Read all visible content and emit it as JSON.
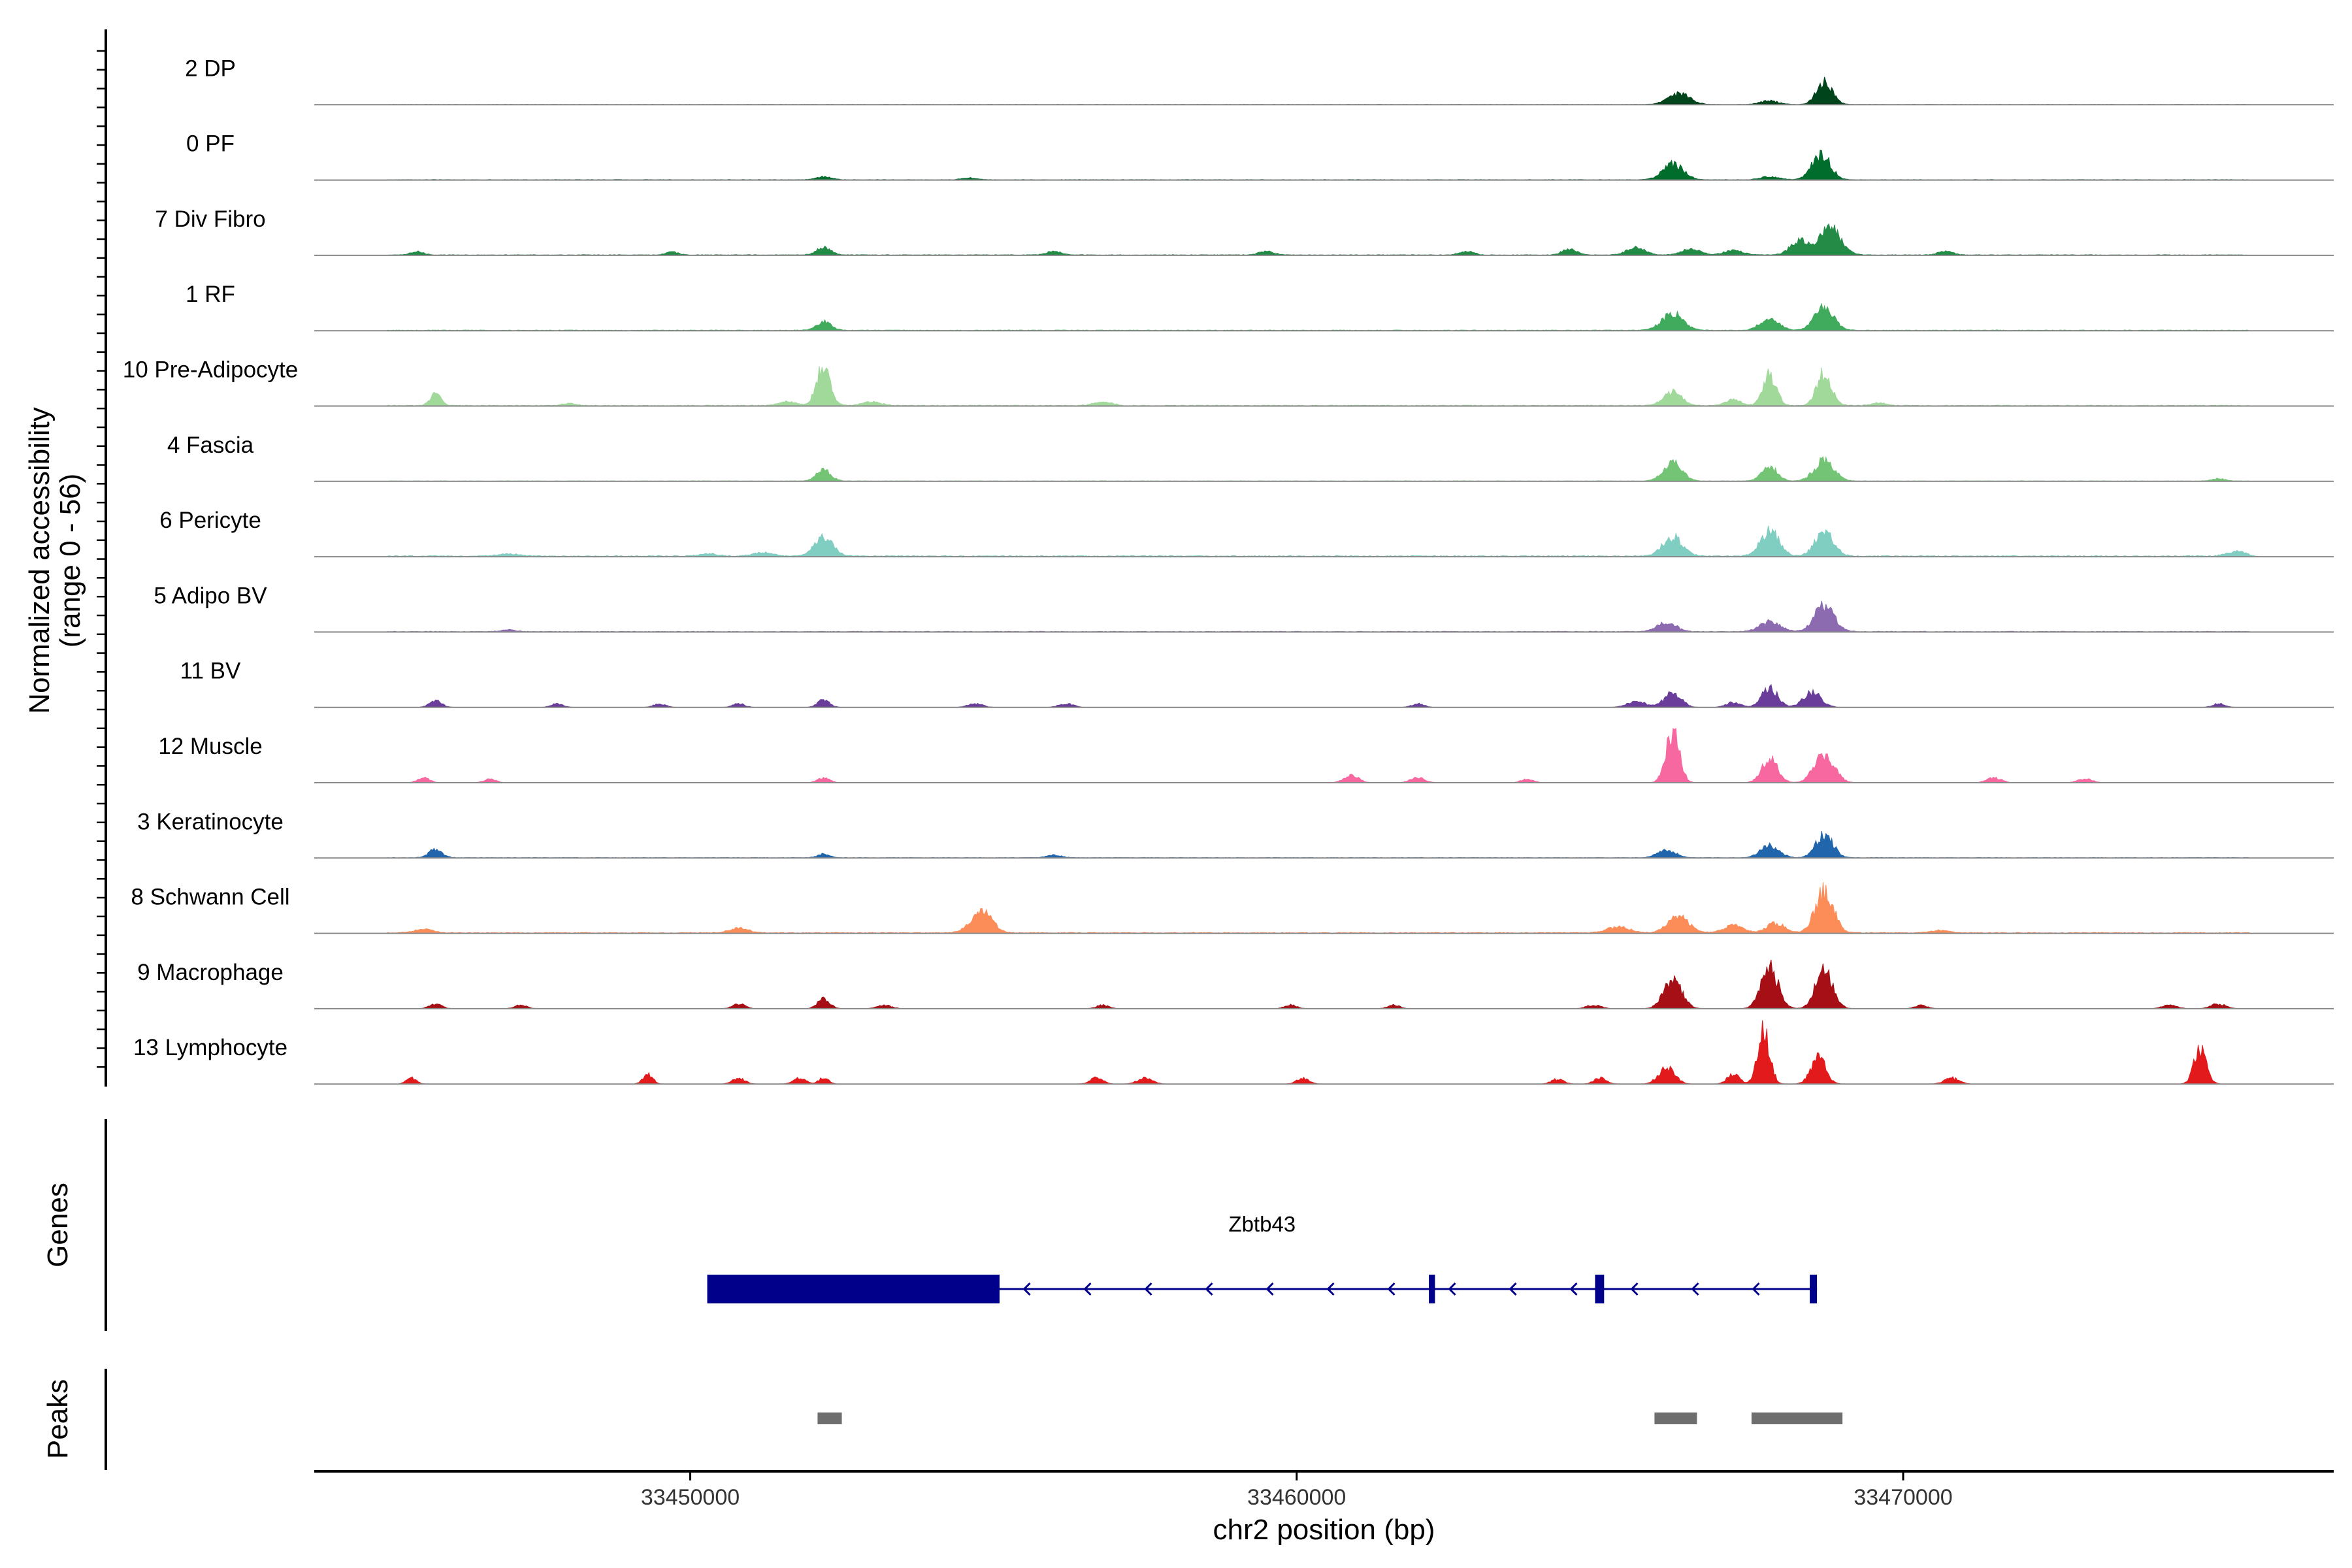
{
  "chart_data": {
    "type": "coverage",
    "title": "",
    "ylabel": "Normalized accessibility",
    "ylabel_range": "(range 0 - 56)",
    "xlabel": "chr2 position (bp)",
    "xlim": [
      33443800,
      33477100
    ],
    "ylim": [
      0,
      56
    ],
    "x_ticks": [
      33450000,
      33460000,
      33470000
    ],
    "x_tick_labels": [
      "33450000",
      "33460000",
      "33470000"
    ],
    "tracks": [
      {
        "name": "2 DP",
        "color": "#00441b",
        "base": 0.2,
        "peaks": [
          [
            33466300,
            9,
            180
          ],
          [
            33467800,
            3,
            150
          ],
          [
            33468700,
            19,
            130
          ]
        ]
      },
      {
        "name": "0 PF",
        "color": "#006d2c",
        "base": 0.3,
        "peaks": [
          [
            33452200,
            2.5,
            120
          ],
          [
            33454600,
            1.5,
            120
          ],
          [
            33466200,
            13,
            170
          ],
          [
            33467800,
            2.5,
            150
          ],
          [
            33468650,
            21,
            150
          ]
        ]
      },
      {
        "name": "7 Div Fibro",
        "color": "#238b45",
        "base": 0.4,
        "peaks": [
          [
            33445500,
            3,
            100
          ],
          [
            33449700,
            2.5,
            100
          ],
          [
            33452200,
            6,
            120
          ],
          [
            33456000,
            3,
            120
          ],
          [
            33459500,
            3,
            120
          ],
          [
            33462800,
            3,
            120
          ],
          [
            33464500,
            5,
            120
          ],
          [
            33465600,
            6,
            150
          ],
          [
            33466500,
            5,
            150
          ],
          [
            33467200,
            4,
            150
          ],
          [
            33468300,
            12,
            150
          ],
          [
            33468800,
            22,
            170
          ],
          [
            33470700,
            3,
            120
          ]
        ]
      },
      {
        "name": "1 RF",
        "color": "#41ab5d",
        "base": 0.4,
        "peaks": [
          [
            33452200,
            7,
            120
          ],
          [
            33466200,
            14,
            170
          ],
          [
            33467800,
            10,
            150
          ],
          [
            33468700,
            21,
            150
          ]
        ]
      },
      {
        "name": "10 Pre-Adipocyte",
        "color": "#a1d99b",
        "base": 0.5,
        "peaks": [
          [
            33445800,
            9,
            90
          ],
          [
            33448000,
            1.5,
            120
          ],
          [
            33451600,
            3,
            150
          ],
          [
            33452200,
            35,
            110
          ],
          [
            33453000,
            3,
            150
          ],
          [
            33456800,
            3,
            150
          ],
          [
            33466200,
            11,
            150
          ],
          [
            33467200,
            5,
            120
          ],
          [
            33467800,
            25,
            110
          ],
          [
            33468700,
            27,
            120
          ],
          [
            33469600,
            2,
            120
          ]
        ]
      },
      {
        "name": "4 Fascia",
        "color": "#74c476",
        "base": 0.3,
        "peaks": [
          [
            33452200,
            9,
            120
          ],
          [
            33466200,
            16,
            150
          ],
          [
            33467800,
            12,
            130
          ],
          [
            33468700,
            17,
            160
          ],
          [
            33475200,
            2,
            110
          ]
        ]
      },
      {
        "name": "6 Pericyte",
        "color": "#80cdc1",
        "base": 0.6,
        "peaks": [
          [
            33447000,
            2,
            150
          ],
          [
            33450300,
            2,
            150
          ],
          [
            33451200,
            3,
            150
          ],
          [
            33452200,
            15,
            150
          ],
          [
            33466200,
            16,
            160
          ],
          [
            33467800,
            21,
            150
          ],
          [
            33468700,
            20,
            150
          ],
          [
            33475500,
            4,
            150
          ]
        ]
      },
      {
        "name": "5 Adipo BV",
        "color": "#8c6bb1",
        "base": 0.4,
        "peaks": [
          [
            33447000,
            1.5,
            120
          ],
          [
            33466100,
            8,
            150
          ],
          [
            33467800,
            8,
            170
          ],
          [
            33468700,
            22,
            160
          ]
        ]
      },
      {
        "name": "11 BV",
        "color": "#6a3d9a",
        "base": 0,
        "peaks": [
          [
            33445800,
            6,
            100
          ],
          [
            33447800,
            3,
            100
          ],
          [
            33449500,
            3,
            100
          ],
          [
            33450800,
            3,
            100
          ],
          [
            33452200,
            6,
            100
          ],
          [
            33454700,
            3,
            120
          ],
          [
            33456200,
            3,
            120
          ],
          [
            33462000,
            3,
            100
          ],
          [
            33465600,
            5,
            150
          ],
          [
            33466200,
            12,
            140
          ],
          [
            33467200,
            4,
            120
          ],
          [
            33467800,
            16,
            130
          ],
          [
            33468500,
            12,
            150
          ],
          [
            33475200,
            3,
            100
          ]
        ]
      },
      {
        "name": "12 Muscle",
        "color": "#f768a1",
        "base": 0,
        "peaks": [
          [
            33445600,
            4,
            100
          ],
          [
            33446700,
            3,
            100
          ],
          [
            33452200,
            4,
            100
          ],
          [
            33460900,
            6,
            120
          ],
          [
            33462000,
            4,
            120
          ],
          [
            33463800,
            3,
            100
          ],
          [
            33466200,
            42,
            110
          ],
          [
            33467800,
            20,
            130
          ],
          [
            33468700,
            24,
            160
          ],
          [
            33471500,
            4,
            120
          ],
          [
            33473000,
            3,
            120
          ]
        ]
      },
      {
        "name": "3 Keratinocyte",
        "color": "#2166ac",
        "base": 0.3,
        "peaks": [
          [
            33445800,
            7,
            110
          ],
          [
            33452200,
            3,
            100
          ],
          [
            33456000,
            2,
            120
          ],
          [
            33466100,
            6,
            150
          ],
          [
            33467800,
            10,
            150
          ],
          [
            33468700,
            19,
            140
          ]
        ]
      },
      {
        "name": "8 Schwann Cell",
        "color": "#fc8d59",
        "base": 0.5,
        "peaks": [
          [
            33445600,
            3,
            150
          ],
          [
            33450800,
            4,
            150
          ],
          [
            33454800,
            18,
            170
          ],
          [
            33465300,
            5,
            180
          ],
          [
            33466300,
            14,
            170
          ],
          [
            33467200,
            6,
            160
          ],
          [
            33467900,
            8,
            150
          ],
          [
            33468700,
            34,
            150
          ],
          [
            33470600,
            2,
            150
          ]
        ]
      },
      {
        "name": "9 Macrophage",
        "color": "#a50f15",
        "base": 0,
        "peaks": [
          [
            33445800,
            4,
            100
          ],
          [
            33447200,
            3,
            100
          ],
          [
            33450800,
            4,
            100
          ],
          [
            33452200,
            8,
            100
          ],
          [
            33453200,
            3,
            120
          ],
          [
            33456800,
            3,
            100
          ],
          [
            33459900,
            3,
            100
          ],
          [
            33461600,
            3,
            100
          ],
          [
            33464900,
            3,
            120
          ],
          [
            33466200,
            23,
            150
          ],
          [
            33467800,
            33,
            140
          ],
          [
            33468700,
            33,
            140
          ],
          [
            33470300,
            3,
            100
          ],
          [
            33474400,
            3,
            120
          ],
          [
            33475200,
            4,
            120
          ]
        ]
      },
      {
        "name": "13 Lymphocyte",
        "color": "#e31a1c",
        "base": 0,
        "peaks": [
          [
            33445400,
            5,
            80
          ],
          [
            33449300,
            8,
            80
          ],
          [
            33450800,
            5,
            100
          ],
          [
            33451800,
            5,
            100
          ],
          [
            33452200,
            5,
            80
          ],
          [
            33456700,
            6,
            100
          ],
          [
            33457500,
            5,
            120
          ],
          [
            33460100,
            5,
            100
          ],
          [
            33464300,
            4,
            100
          ],
          [
            33465000,
            5,
            100
          ],
          [
            33466100,
            14,
            130
          ],
          [
            33467200,
            8,
            100
          ],
          [
            33467700,
            44,
            100
          ],
          [
            33468600,
            22,
            120
          ],
          [
            33470800,
            5,
            120
          ],
          [
            33474900,
            30,
            100
          ]
        ]
      }
    ],
    "genes": [
      {
        "name": "Zbtb43",
        "start": 33450280,
        "end": 33468580,
        "strand": "-",
        "color": "#00008b",
        "exons": [
          [
            33450280,
            33455100
          ],
          [
            33462180,
            33462280
          ],
          [
            33464920,
            33465070
          ],
          [
            33468460,
            33468580
          ]
        ]
      }
    ],
    "peak_regions": [
      [
        33452100,
        33452500
      ],
      [
        33465900,
        33466600
      ],
      [
        33467500,
        33469000
      ]
    ],
    "panel_labels": {
      "genes": "Genes",
      "peaks": "Peaks"
    }
  }
}
